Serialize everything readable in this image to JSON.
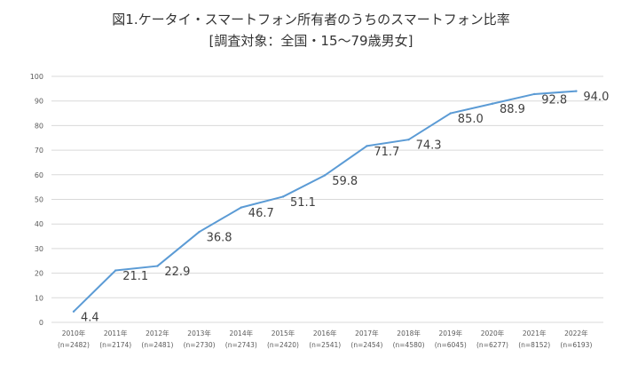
{
  "chart_data": {
    "type": "line",
    "title": "図1.ケータイ・スマートフォン所有者のうちのスマートフォン比率",
    "subtitle": "[調査対象：全国・15～79歳男女]",
    "categories": [
      "2010年",
      "2011年",
      "2012年",
      "2013年",
      "2014年",
      "2015年",
      "2016年",
      "2017年",
      "2018年",
      "2019年",
      "2020年",
      "2021年",
      "2022年"
    ],
    "sample_sizes": [
      "(n=2482)",
      "(n=2174)",
      "(n=2481)",
      "(n=2730)",
      "(n=2743)",
      "(n=2420)",
      "(n=2541)",
      "(n=2454)",
      "(n=4580)",
      "(n=6045)",
      "(n=6277)",
      "(n=8152)",
      "(n=6193)"
    ],
    "values": [
      4.4,
      21.1,
      22.9,
      36.8,
      46.7,
      51.1,
      59.8,
      71.7,
      74.3,
      85.0,
      88.9,
      92.8,
      94.0
    ],
    "data_labels": [
      "4.4",
      "21.1",
      "22.9",
      "36.8",
      "46.7",
      "51.1",
      "59.8",
      "71.7",
      "74.3",
      "85.0",
      "88.9",
      "92.8",
      "94.0"
    ],
    "y_ticks": [
      "0",
      "10",
      "20",
      "30",
      "40",
      "50",
      "60",
      "70",
      "80",
      "90",
      "100"
    ],
    "ylim": [
      0,
      100
    ],
    "grid": true,
    "line_color": "#5b9bd5",
    "grid_color": "#d9d9d9"
  }
}
